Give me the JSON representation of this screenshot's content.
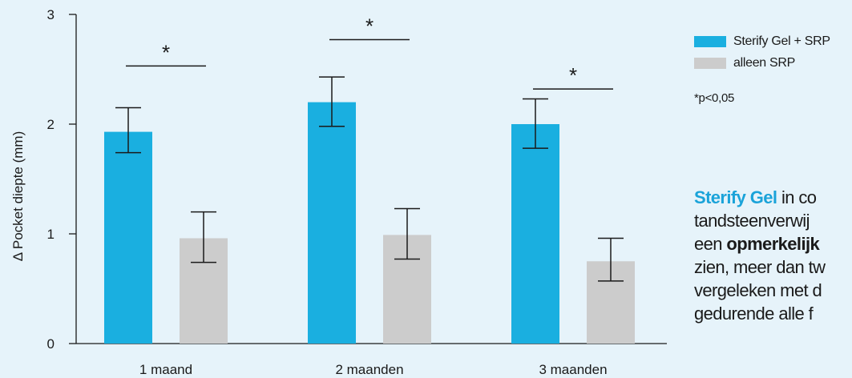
{
  "chart_data": {
    "type": "bar",
    "categories": [
      "1 maand",
      "2 maanden",
      "3 maanden"
    ],
    "series": [
      {
        "name": "Sterify Gel + SRP",
        "color": "#1aafe0",
        "values": [
          1.93,
          2.2,
          2.0
        ],
        "error_low": [
          1.74,
          1.98,
          1.78
        ],
        "error_high": [
          2.15,
          2.43,
          2.23
        ]
      },
      {
        "name": "alleen SRP",
        "color": "#cccccc",
        "values": [
          0.96,
          0.99,
          0.75
        ],
        "error_low": [
          0.74,
          0.77,
          0.57
        ],
        "error_high": [
          1.2,
          1.23,
          0.96
        ]
      }
    ],
    "ylabel": "Δ Pocket diepte (mm)",
    "xlabel": "",
    "ylim": [
      0,
      3
    ],
    "yticks": [
      0,
      1,
      2,
      3
    ],
    "significance": [
      {
        "category_index": 0,
        "label": "*",
        "bar_level": 2.53
      },
      {
        "category_index": 1,
        "label": "*",
        "bar_level": 2.77
      },
      {
        "category_index": 2,
        "label": "*",
        "bar_level": 2.32
      }
    ],
    "grid": false,
    "legend_position": "right"
  },
  "footnote": "*p<0,05",
  "description": {
    "line1_brand": "Sterify Gel",
    "line1_rest": " in co",
    "line2": "tandsteenverwij",
    "line3_pre": "een ",
    "line3_strong": "opmerkelijk",
    "line4": "zien, meer dan tw",
    "line5": "vergeleken met d",
    "line6": "gedurende alle f"
  }
}
